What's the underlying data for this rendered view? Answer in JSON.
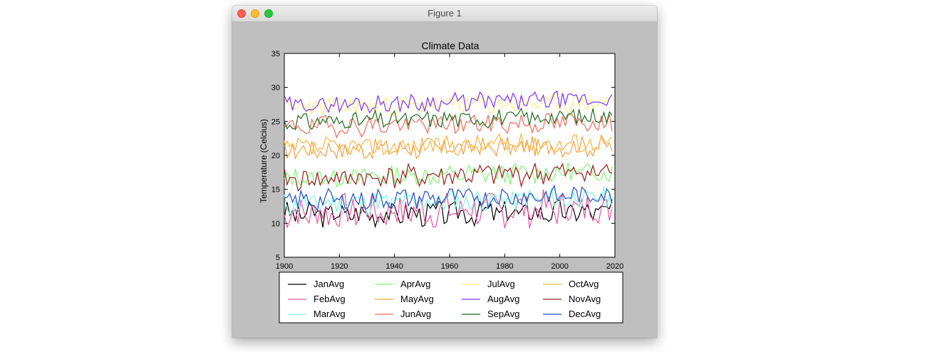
{
  "window": {
    "title": "Figure 1"
  },
  "chart_data": {
    "type": "line",
    "title": "Climate Data",
    "xlabel": "",
    "ylabel": "Temperature (Celcius)",
    "xlim": [
      1900,
      2020
    ],
    "ylim": [
      5,
      35
    ],
    "x_ticks": [
      "1900",
      "1920",
      "1940",
      "1960",
      "1980",
      "2000",
      "2020"
    ],
    "y_ticks": [
      "5",
      "10",
      "15",
      "20",
      "25",
      "30",
      "35"
    ],
    "grid": false,
    "legend_position": "bottom",
    "x_start": 1900,
    "x_end": 2019,
    "series": [
      {
        "name": "JanAvg",
        "color": "#000000",
        "base": 11.3,
        "trend": 0.4,
        "amp": 1.2,
        "seed": 3
      },
      {
        "name": "FebAvg",
        "color": "#e8569c",
        "base": 11.5,
        "trend": 0.8,
        "amp": 1.7,
        "seed": 7
      },
      {
        "name": "MarAvg",
        "color": "#7ff5e6",
        "base": 12.8,
        "trend": 0.9,
        "amp": 1.1,
        "seed": 11
      },
      {
        "name": "AprAvg",
        "color": "#7ff572",
        "base": 16.6,
        "trend": 1.0,
        "amp": 1.0,
        "seed": 13
      },
      {
        "name": "MayAvg",
        "color": "#f2a144",
        "base": 20.8,
        "trend": 0.6,
        "amp": 1.0,
        "seed": 17
      },
      {
        "name": "JunAvg",
        "color": "#ee6a5a",
        "base": 24.2,
        "trend": 0.7,
        "amp": 1.0,
        "seed": 19
      },
      {
        "name": "JulAvg",
        "color": "#fff07a",
        "base": 27.1,
        "trend": 0.6,
        "amp": 0.9,
        "seed": 23
      },
      {
        "name": "AugAvg",
        "color": "#7d32f5",
        "base": 27.4,
        "trend": 0.8,
        "amp": 0.9,
        "seed": 29
      },
      {
        "name": "SepAvg",
        "color": "#1f6b1a",
        "base": 24.9,
        "trend": 0.9,
        "amp": 0.9,
        "seed": 31
      },
      {
        "name": "OctAvg",
        "color": "#f7b63c",
        "base": 21.0,
        "trend": 0.9,
        "amp": 1.0,
        "seed": 37
      },
      {
        "name": "NovAvg",
        "color": "#9b1c1c",
        "base": 16.4,
        "trend": 1.2,
        "amp": 1.1,
        "seed": 41
      },
      {
        "name": "DecAvg",
        "color": "#1f4fbf",
        "base": 13.3,
        "trend": 0.9,
        "amp": 1.0,
        "seed": 43
      }
    ]
  }
}
